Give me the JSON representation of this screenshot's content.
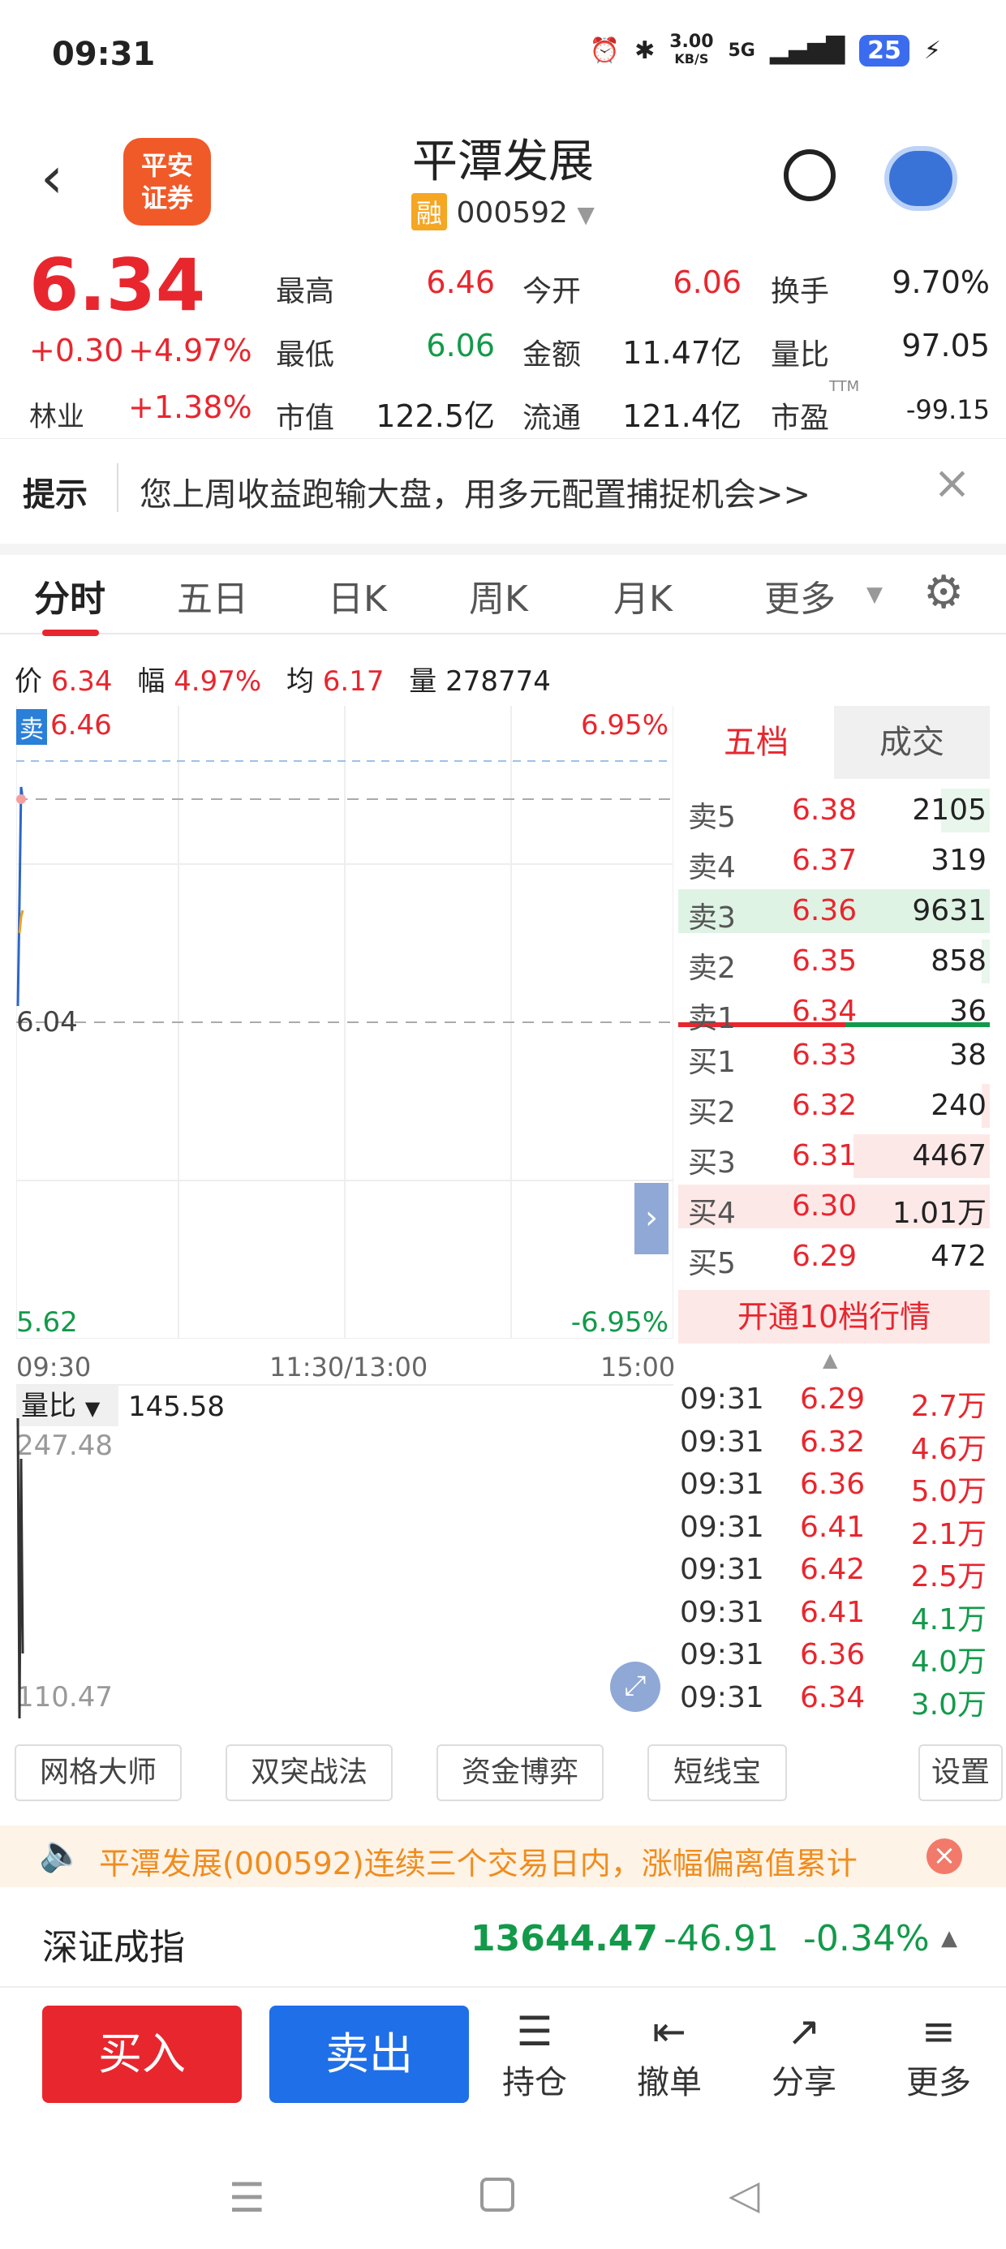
{
  "status": {
    "time": "09:31",
    "net": "3.00",
    "net_unit": "KB/S",
    "signal": "5G",
    "battery": "25"
  },
  "header": {
    "logo_line1": "平安",
    "logo_line2": "证券",
    "title": "平潭发展",
    "badge": "融",
    "code": "000592"
  },
  "quote": {
    "price": "6.34",
    "change": "+0.30",
    "change_pct": "+4.97%",
    "sector_label": "林业",
    "sector_pct": "+1.38%",
    "labels": {
      "high": "最高",
      "low": "最低",
      "mcap": "市值",
      "open": "今开",
      "amount": "金额",
      "float": "流通",
      "turnover": "换手",
      "vol_ratio": "量比",
      "pe": "市盈",
      "pe_sup": "TTM"
    },
    "high": "6.46",
    "low": "6.06",
    "mcap": "122.5亿",
    "open": "6.06",
    "amount": "11.47亿",
    "float": "121.4亿",
    "turnover": "9.70%",
    "vol_ratio": "97.05",
    "pe": "-99.15"
  },
  "tip": {
    "label": "提示",
    "text": "您上周收益跑输大盘，用多元配置捕捉机会>>"
  },
  "tabs": [
    "分时",
    "五日",
    "日K",
    "周K",
    "月K",
    "更多"
  ],
  "info_bar": {
    "price_label": "价",
    "price": "6.34",
    "amp_label": "幅",
    "amp": "4.97%",
    "avg_label": "均",
    "avg": "6.17",
    "vol_label": "量",
    "vol": "278774"
  },
  "chart": {
    "sell_tag": "卖",
    "top_left": "6.46",
    "top_right": "6.95%",
    "mid_left": "6.04",
    "bottom_left": "5.62",
    "bottom_right": "-6.95%",
    "t_start": "09:30",
    "t_mid": "11:30/13:00",
    "t_end": "15:00"
  },
  "sub_chart": {
    "selector": "量比",
    "value": "145.58",
    "top": "247.48",
    "bottom": "110.47"
  },
  "orderbook": {
    "tab_active": "五档",
    "tab_other": "成交",
    "asks": [
      {
        "label": "卖5",
        "price": "6.38",
        "vol": "2105"
      },
      {
        "label": "卖4",
        "price": "6.37",
        "vol": "319"
      },
      {
        "label": "卖3",
        "price": "6.36",
        "vol": "9631"
      },
      {
        "label": "卖2",
        "price": "6.35",
        "vol": "858"
      },
      {
        "label": "卖1",
        "price": "6.34",
        "vol": "36"
      }
    ],
    "bids": [
      {
        "label": "买1",
        "price": "6.33",
        "vol": "38"
      },
      {
        "label": "买2",
        "price": "6.32",
        "vol": "240"
      },
      {
        "label": "买3",
        "price": "6.31",
        "vol": "4467"
      },
      {
        "label": "买4",
        "price": "6.30",
        "vol": "1.01万"
      },
      {
        "label": "买5",
        "price": "6.29",
        "vol": "472"
      }
    ],
    "upgrade": "开通10档行情"
  },
  "trades": [
    {
      "time": "09:31",
      "price": "6.29",
      "vol": "2.7万",
      "dir": "red"
    },
    {
      "time": "09:31",
      "price": "6.32",
      "vol": "4.6万",
      "dir": "red"
    },
    {
      "time": "09:31",
      "price": "6.36",
      "vol": "5.0万",
      "dir": "red"
    },
    {
      "time": "09:31",
      "price": "6.41",
      "vol": "2.1万",
      "dir": "red"
    },
    {
      "time": "09:31",
      "price": "6.42",
      "vol": "2.5万",
      "dir": "red"
    },
    {
      "time": "09:31",
      "price": "6.41",
      "vol": "4.1万",
      "dir": "green"
    },
    {
      "time": "09:31",
      "price": "6.36",
      "vol": "4.0万",
      "dir": "green"
    },
    {
      "time": "09:31",
      "price": "6.34",
      "vol": "3.0万",
      "dir": "green"
    }
  ],
  "tools": [
    "网格大师",
    "双突战法",
    "资金博弈",
    "短线宝",
    "设置"
  ],
  "notice": {
    "text": "平潭发展(000592)连续三个交易日内，涨幅偏离值累计"
  },
  "index": {
    "name": "深证成指",
    "value": "13644.47",
    "change": "-46.91",
    "pct": "-0.34%"
  },
  "bottom": {
    "buy": "买入",
    "sell": "卖出",
    "items": [
      "持仓",
      "撤单",
      "分享",
      "更多"
    ]
  },
  "colors": {
    "up": "#e8262e",
    "down": "#129a4a",
    "buy_btn": "#e8262e",
    "sell_btn": "#1f6fe8"
  }
}
